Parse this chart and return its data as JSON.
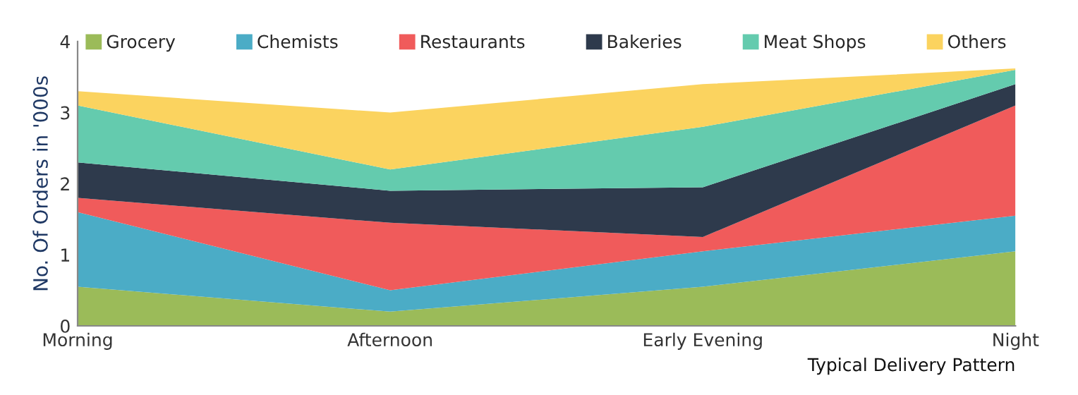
{
  "chart_data": {
    "type": "area",
    "stacked": true,
    "xlabel": "Typical Delivery Pattern",
    "ylabel": "No. Of Orders in '000s",
    "categories": [
      "Morning",
      "Afternoon",
      "Early Evening",
      "Night"
    ],
    "ylim": [
      0,
      4
    ],
    "yticks": [
      0,
      1,
      2,
      3,
      4
    ],
    "grid": false,
    "legend": "top",
    "series": [
      {
        "name": "Grocery",
        "color": "#9bbb59",
        "values": [
          0.55,
          0.2,
          0.55,
          1.05
        ]
      },
      {
        "name": "Chemists",
        "color": "#4bacc6",
        "values": [
          1.05,
          0.3,
          0.5,
          0.5
        ]
      },
      {
        "name": "Restaurants",
        "color": "#f05b5b",
        "values": [
          0.2,
          0.95,
          0.2,
          1.55
        ]
      },
      {
        "name": "Bakeries",
        "color": "#2e3a4c",
        "values": [
          0.5,
          0.45,
          0.7,
          0.3
        ]
      },
      {
        "name": "Meat Shops",
        "color": "#64cbae",
        "values": [
          0.8,
          0.3,
          0.85,
          0.2
        ]
      },
      {
        "name": "Others",
        "color": "#fbd35f",
        "values": [
          0.2,
          0.8,
          0.6,
          0.02
        ]
      }
    ]
  }
}
